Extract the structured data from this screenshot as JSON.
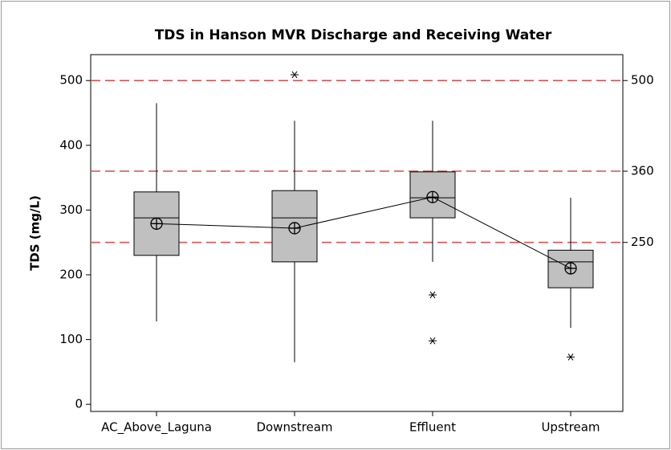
{
  "chart_data": {
    "type": "box",
    "title": "TDS in Hanson MVR Discharge and Receiving Water",
    "y_label": "TDS (mg/L)",
    "categories": [
      "AC_Above_Laguna",
      "Downstream",
      "Effluent",
      "Upstream"
    ],
    "boxes": [
      {
        "whisker_low": 128,
        "q1": 230,
        "median": 288,
        "q3": 328,
        "whisker_high": 465,
        "mean": 279,
        "outliers": []
      },
      {
        "whisker_low": 65,
        "q1": 220,
        "median": 288,
        "q3": 330,
        "whisker_high": 438,
        "mean": 272,
        "outliers": [
          509
        ]
      },
      {
        "whisker_low": 220,
        "q1": 288,
        "median": 319,
        "q3": 359,
        "whisker_high": 438,
        "mean": 320,
        "outliers": [
          169,
          98
        ]
      },
      {
        "whisker_low": 118,
        "q1": 180,
        "median": 220,
        "q3": 238,
        "whisker_high": 319,
        "mean": 210,
        "outliers": [
          73
        ]
      }
    ],
    "box_color": "#c0c0c0",
    "reference_lines": [
      500,
      360,
      250
    ],
    "reference_color": "#e04848",
    "ylim": [
      -11,
      540
    ],
    "yticks": [
      0,
      100,
      200,
      300,
      400,
      500
    ]
  }
}
